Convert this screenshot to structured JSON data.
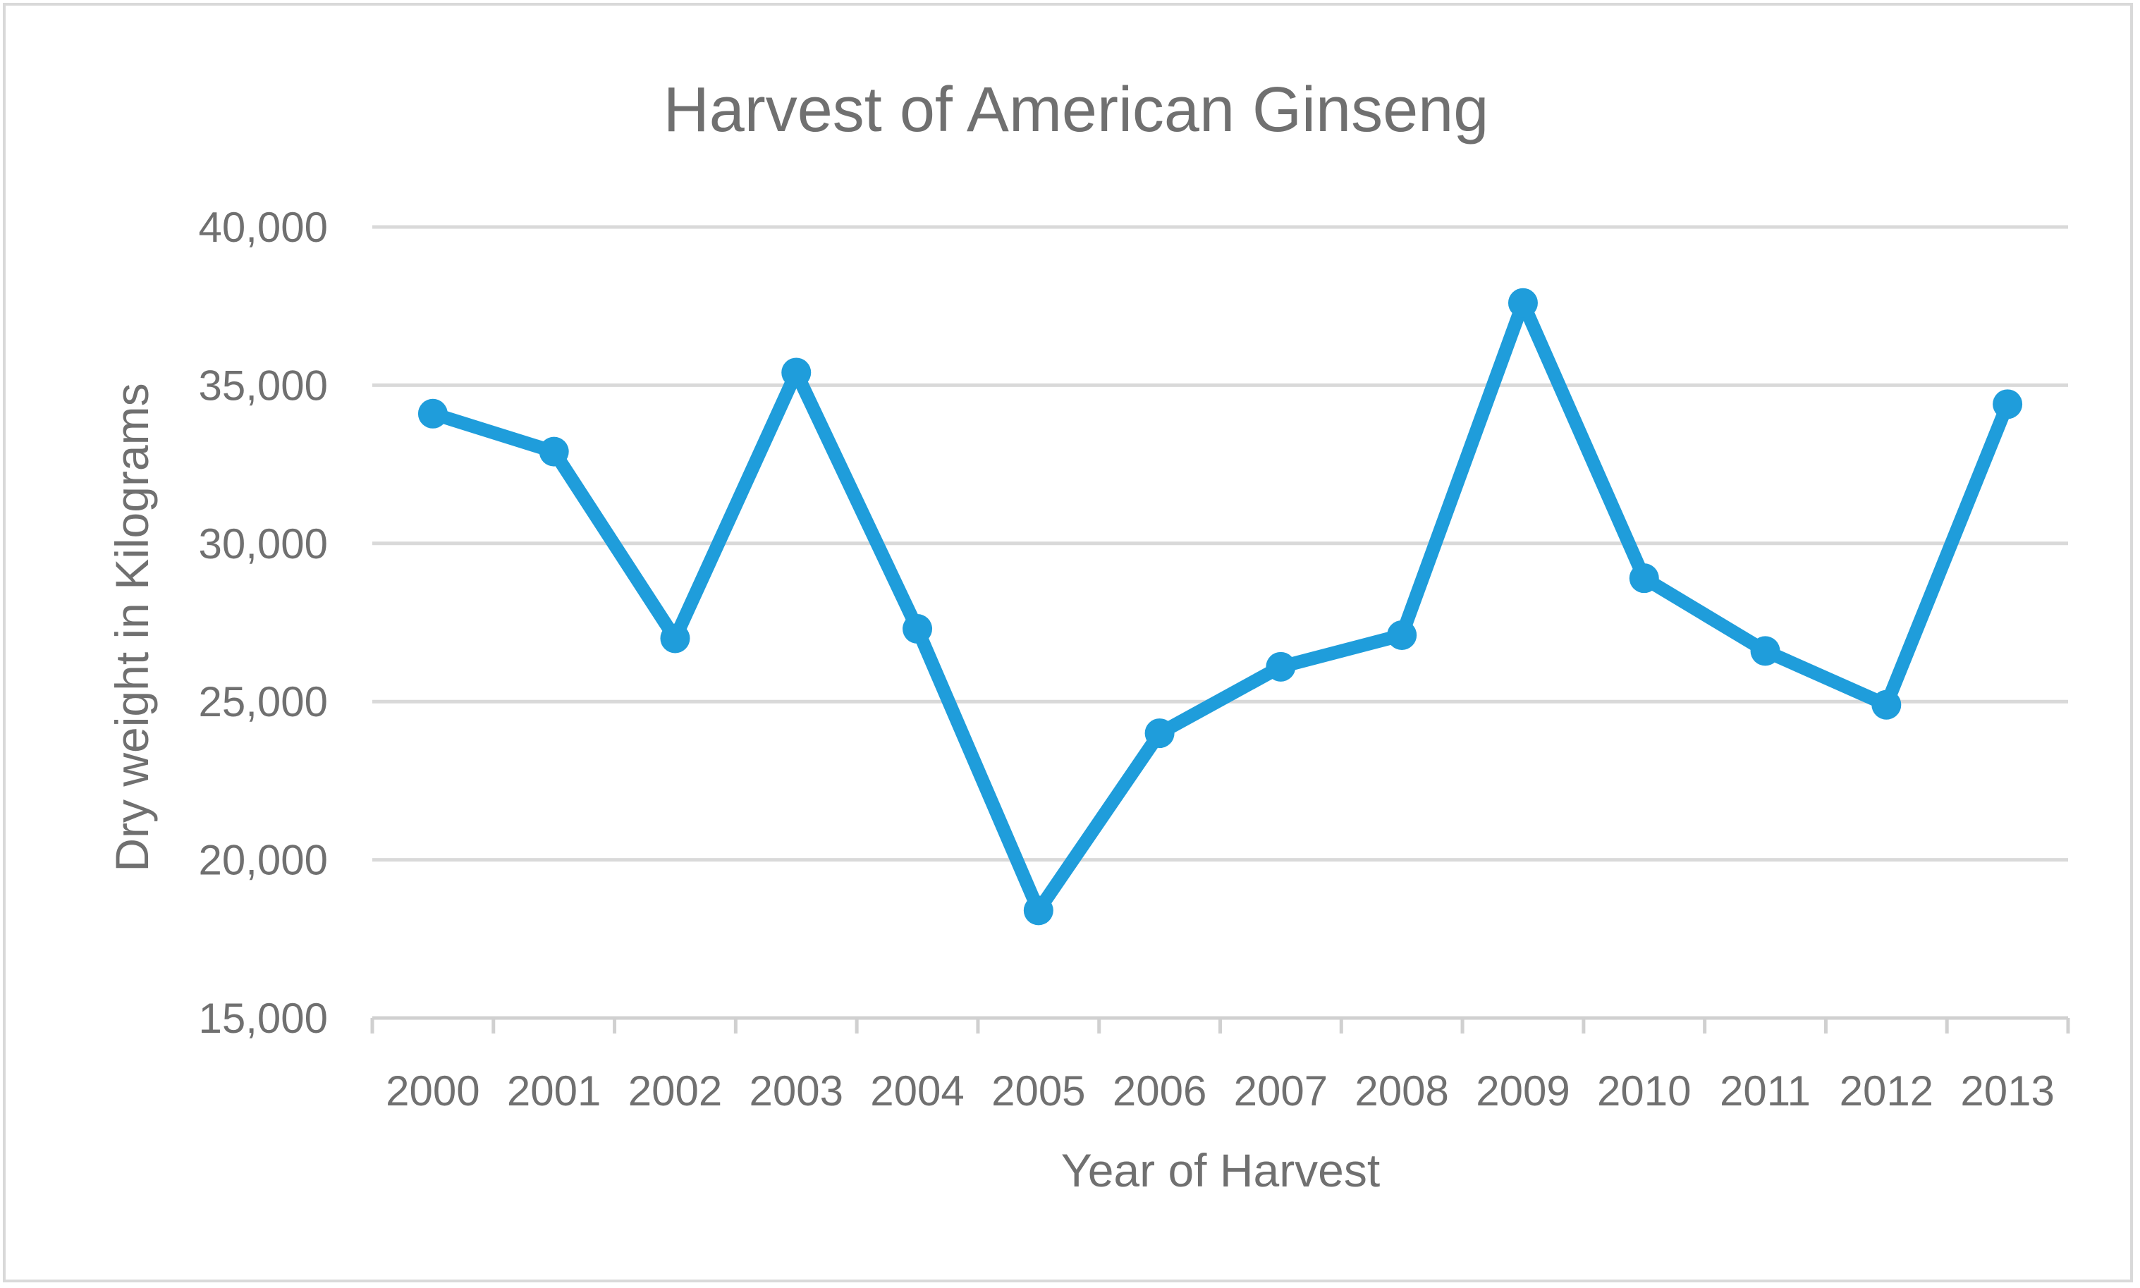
{
  "chart_data": {
    "type": "line",
    "title": "Harvest of American Ginseng",
    "xlabel": "Year of Harvest",
    "ylabel": "Dry weight in Kilograms",
    "categories": [
      "2000",
      "2001",
      "2002",
      "2003",
      "2004",
      "2005",
      "2006",
      "2007",
      "2008",
      "2009",
      "2010",
      "2011",
      "2012",
      "2013"
    ],
    "series": [
      {
        "values": [
          34100,
          32900,
          27000,
          35400,
          27300,
          18400,
          24000,
          26100,
          27100,
          37600,
          28900,
          26600,
          24900,
          34400
        ]
      }
    ],
    "ylim": [
      15000,
      40000
    ],
    "yticks": [
      15000,
      20000,
      25000,
      30000,
      35000,
      40000
    ],
    "ytick_labels": [
      "15,000",
      "20,000",
      "25,000",
      "30,000",
      "35,000",
      "40,000"
    ],
    "grid": true,
    "legend": "none",
    "colors": {
      "series": "#1f9ddb",
      "grid": "#d9d9d9",
      "text": "#707070",
      "border": "#d9d9d9"
    }
  }
}
